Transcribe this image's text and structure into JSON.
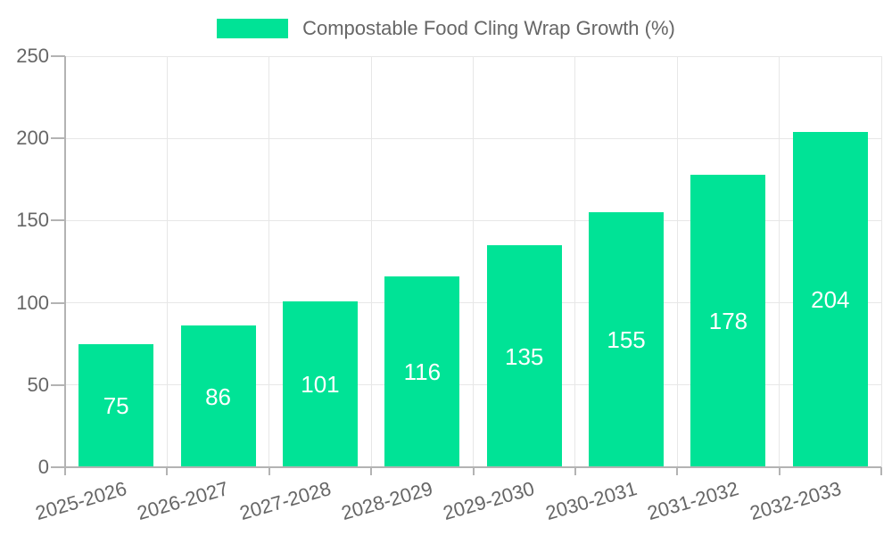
{
  "legend": {
    "label": "Compostable Food Cling Wrap Growth (%)"
  },
  "chart_data": {
    "type": "bar",
    "title": "Compostable Food Cling Wrap Growth (%)",
    "categories": [
      "2025-2026",
      "2026-2027",
      "2027-2028",
      "2028-2029",
      "2029-2030",
      "2030-2031",
      "2031-2032",
      "2032-2033"
    ],
    "values": [
      75,
      86,
      101,
      116,
      135,
      155,
      178,
      204
    ],
    "yticks": [
      0,
      50,
      100,
      150,
      200,
      250
    ],
    "ylim": [
      0,
      250
    ],
    "xlabel": "",
    "ylabel": "",
    "grid": true,
    "legend_position": "top",
    "colors": {
      "bar": "#00E396",
      "data_label": "#ffffff",
      "axis_text": "#666666",
      "gridline": "#e7e7e7",
      "axis_line": "#b3b3b3",
      "background": "#ffffff"
    }
  }
}
